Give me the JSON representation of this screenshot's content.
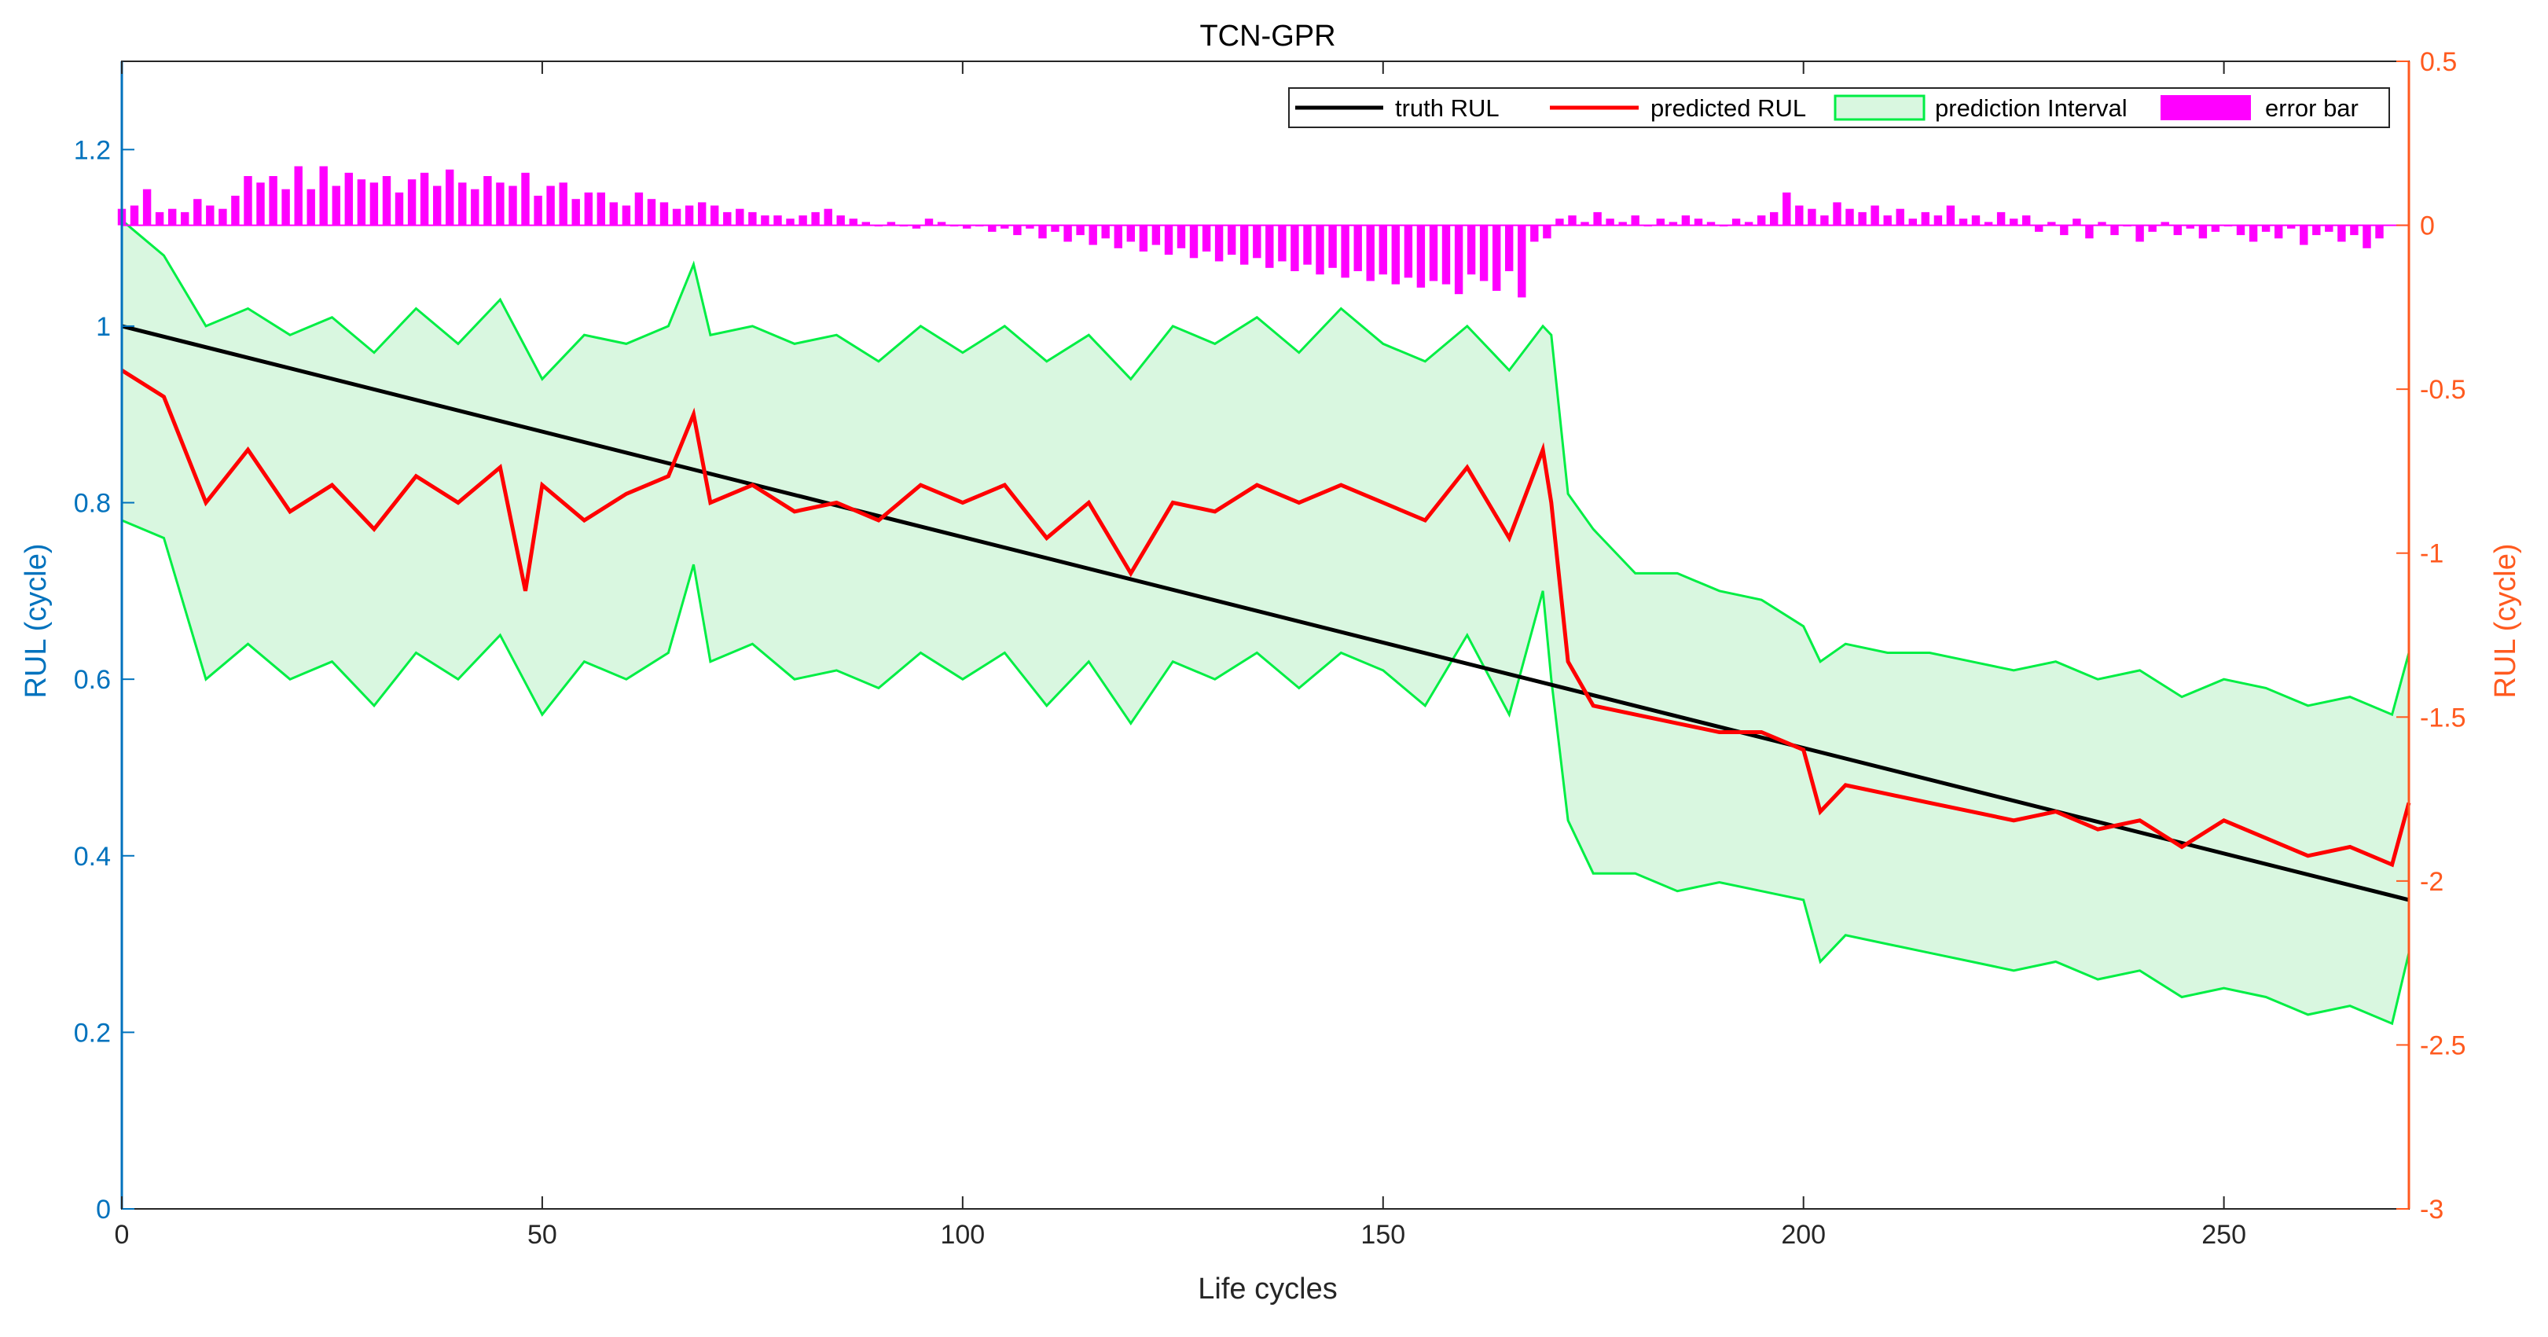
{
  "chart_data": {
    "type": "line",
    "title": "TCN-GPR",
    "xlabel": "Life cycles",
    "ylabel_left": "RUL (cycle)",
    "ylabel_right": "RUL (cycle)",
    "xlim": [
      0,
      272
    ],
    "ylim_left": [
      0,
      1.3
    ],
    "ylim_right": [
      -3,
      0.5
    ],
    "x_ticks": [
      0,
      50,
      100,
      150,
      200,
      250
    ],
    "x_tick_labels": [
      "0",
      "50",
      "100",
      "150",
      "200",
      "250"
    ],
    "y_left_ticks": [
      0,
      0.2,
      0.4,
      0.6,
      0.8,
      1,
      1.2
    ],
    "y_left_tick_labels": [
      "0",
      "0.2",
      "0.4",
      "0.6",
      "0.8",
      "1",
      "1.2"
    ],
    "y_right_ticks": [
      -3,
      -2.5,
      -2,
      -1.5,
      -1,
      -0.5,
      0,
      0.5
    ],
    "y_right_tick_labels": [
      "-3",
      "-2.5",
      "-2",
      "-1.5",
      "-1",
      "-0.5",
      "0",
      "0.5"
    ],
    "grid": false,
    "legend_position": "top-right",
    "legend": [
      {
        "label": "truth RUL",
        "kind": "line",
        "color": "#000000"
      },
      {
        "label": "predicted RUL",
        "kind": "line",
        "color": "#ff0000"
      },
      {
        "label": "prediction Interval",
        "kind": "patch",
        "color": "#00ee44",
        "fill": "#d9f7e0"
      },
      {
        "label": "error bar",
        "kind": "bar",
        "color": "#ff00ff"
      }
    ],
    "colors": {
      "truth": "#000000",
      "predicted": "#ff0000",
      "interval_edge": "#00ee44",
      "interval_fill": "#d9f7e0",
      "error_bar": "#ff00ff",
      "left_axis": "#0072bd",
      "right_axis": "#ff5a1f"
    },
    "series": [
      {
        "name": "truth RUL",
        "axis": "left",
        "x": [
          0,
          272
        ],
        "values": [
          1.0,
          0.35
        ]
      },
      {
        "name": "predicted RUL",
        "axis": "left",
        "x": [
          0,
          5,
          10,
          15,
          20,
          25,
          30,
          35,
          40,
          45,
          48,
          50,
          55,
          60,
          65,
          68,
          70,
          75,
          80,
          85,
          90,
          95,
          100,
          105,
          110,
          115,
          120,
          125,
          130,
          135,
          140,
          145,
          150,
          155,
          160,
          165,
          169,
          170,
          172,
          175,
          180,
          185,
          190,
          195,
          200,
          202,
          205,
          210,
          215,
          220,
          225,
          230,
          235,
          240,
          245,
          250,
          255,
          260,
          265,
          270,
          272
        ],
        "values": [
          0.95,
          0.92,
          0.8,
          0.86,
          0.79,
          0.82,
          0.77,
          0.83,
          0.8,
          0.84,
          0.7,
          0.82,
          0.78,
          0.81,
          0.83,
          0.9,
          0.8,
          0.82,
          0.79,
          0.8,
          0.78,
          0.82,
          0.8,
          0.82,
          0.76,
          0.8,
          0.72,
          0.8,
          0.79,
          0.82,
          0.8,
          0.82,
          0.8,
          0.78,
          0.84,
          0.76,
          0.86,
          0.8,
          0.62,
          0.57,
          0.56,
          0.55,
          0.54,
          0.54,
          0.52,
          0.45,
          0.48,
          0.47,
          0.46,
          0.45,
          0.44,
          0.45,
          0.43,
          0.44,
          0.41,
          0.44,
          0.42,
          0.4,
          0.41,
          0.39,
          0.46
        ]
      },
      {
        "name": "prediction Interval upper",
        "axis": "left",
        "x": [
          0,
          5,
          10,
          15,
          20,
          25,
          30,
          35,
          40,
          45,
          50,
          55,
          60,
          65,
          68,
          70,
          75,
          80,
          85,
          90,
          95,
          100,
          105,
          110,
          115,
          120,
          125,
          130,
          135,
          140,
          145,
          150,
          155,
          160,
          165,
          169,
          170,
          172,
          175,
          180,
          185,
          190,
          195,
          200,
          202,
          205,
          210,
          215,
          220,
          225,
          230,
          235,
          240,
          245,
          250,
          255,
          260,
          265,
          270,
          272
        ],
        "values": [
          1.12,
          1.08,
          1.0,
          1.02,
          0.99,
          1.01,
          0.97,
          1.02,
          0.98,
          1.03,
          0.94,
          0.99,
          0.98,
          1.0,
          1.07,
          0.99,
          1.0,
          0.98,
          0.99,
          0.96,
          1.0,
          0.97,
          1.0,
          0.96,
          0.99,
          0.94,
          1.0,
          0.98,
          1.01,
          0.97,
          1.02,
          0.98,
          0.96,
          1.0,
          0.95,
          1.0,
          0.99,
          0.81,
          0.77,
          0.72,
          0.72,
          0.7,
          0.69,
          0.66,
          0.62,
          0.64,
          0.63,
          0.63,
          0.62,
          0.61,
          0.62,
          0.6,
          0.61,
          0.58,
          0.6,
          0.59,
          0.57,
          0.58,
          0.56,
          0.63
        ]
      },
      {
        "name": "prediction Interval lower",
        "axis": "left",
        "x": [
          0,
          5,
          10,
          15,
          20,
          25,
          30,
          35,
          40,
          45,
          50,
          55,
          60,
          65,
          68,
          70,
          75,
          80,
          85,
          90,
          95,
          100,
          105,
          110,
          115,
          120,
          125,
          130,
          135,
          140,
          145,
          150,
          155,
          160,
          165,
          169,
          170,
          172,
          175,
          180,
          185,
          190,
          195,
          200,
          202,
          205,
          210,
          215,
          220,
          225,
          230,
          235,
          240,
          245,
          250,
          255,
          260,
          265,
          270,
          272
        ],
        "values": [
          0.78,
          0.76,
          0.6,
          0.64,
          0.6,
          0.62,
          0.57,
          0.63,
          0.6,
          0.65,
          0.56,
          0.62,
          0.6,
          0.63,
          0.73,
          0.62,
          0.64,
          0.6,
          0.61,
          0.59,
          0.63,
          0.6,
          0.63,
          0.57,
          0.62,
          0.55,
          0.62,
          0.6,
          0.63,
          0.59,
          0.63,
          0.61,
          0.57,
          0.65,
          0.56,
          0.7,
          0.6,
          0.44,
          0.38,
          0.38,
          0.36,
          0.37,
          0.36,
          0.35,
          0.28,
          0.31,
          0.3,
          0.29,
          0.28,
          0.27,
          0.28,
          0.26,
          0.27,
          0.24,
          0.25,
          0.24,
          0.22,
          0.23,
          0.21,
          0.29
        ]
      },
      {
        "name": "error bar",
        "axis": "right",
        "type": "bar",
        "x_start": 0,
        "x_step": 1.5,
        "values": [
          0.05,
          0.06,
          0.11,
          0.04,
          0.05,
          0.04,
          0.08,
          0.06,
          0.05,
          0.09,
          0.15,
          0.13,
          0.15,
          0.11,
          0.18,
          0.11,
          0.18,
          0.12,
          0.16,
          0.14,
          0.13,
          0.15,
          0.1,
          0.14,
          0.16,
          0.12,
          0.17,
          0.13,
          0.11,
          0.15,
          0.13,
          0.12,
          0.16,
          0.09,
          0.12,
          0.13,
          0.08,
          0.1,
          0.1,
          0.07,
          0.06,
          0.1,
          0.08,
          0.07,
          0.05,
          0.06,
          0.07,
          0.06,
          0.04,
          0.05,
          0.04,
          0.03,
          0.03,
          0.02,
          0.03,
          0.04,
          0.05,
          0.03,
          0.02,
          0.01,
          0.0,
          0.01,
          0.0,
          -0.01,
          0.02,
          0.01,
          0.0,
          -0.01,
          0.0,
          -0.02,
          -0.01,
          -0.03,
          -0.01,
          -0.04,
          -0.02,
          -0.05,
          -0.03,
          -0.06,
          -0.04,
          -0.07,
          -0.05,
          -0.08,
          -0.06,
          -0.09,
          -0.07,
          -0.1,
          -0.08,
          -0.11,
          -0.09,
          -0.12,
          -0.1,
          -0.13,
          -0.11,
          -0.14,
          -0.12,
          -0.15,
          -0.13,
          -0.16,
          -0.14,
          -0.17,
          -0.15,
          -0.18,
          -0.16,
          -0.19,
          -0.17,
          -0.18,
          -0.21,
          -0.15,
          -0.17,
          -0.2,
          -0.14,
          -0.22,
          -0.05,
          -0.04,
          0.02,
          0.03,
          0.01,
          0.04,
          0.02,
          0.01,
          0.03,
          0.0,
          0.02,
          0.01,
          0.03,
          0.02,
          0.01,
          0.0,
          0.02,
          0.01,
          0.03,
          0.04,
          0.1,
          0.06,
          0.05,
          0.03,
          0.07,
          0.05,
          0.04,
          0.06,
          0.03,
          0.05,
          0.02,
          0.04,
          0.03,
          0.06,
          0.02,
          0.03,
          0.01,
          0.04,
          0.02,
          0.03,
          -0.02,
          0.01,
          -0.03,
          0.02,
          -0.04,
          0.01,
          -0.03,
          0.0,
          -0.05,
          -0.02,
          0.01,
          -0.03,
          -0.01,
          -0.04,
          -0.02,
          0.0,
          -0.03,
          -0.05,
          -0.02,
          -0.04,
          -0.01,
          -0.06,
          -0.03,
          -0.02,
          -0.05,
          -0.03,
          -0.07,
          -0.04
        ]
      }
    ]
  }
}
